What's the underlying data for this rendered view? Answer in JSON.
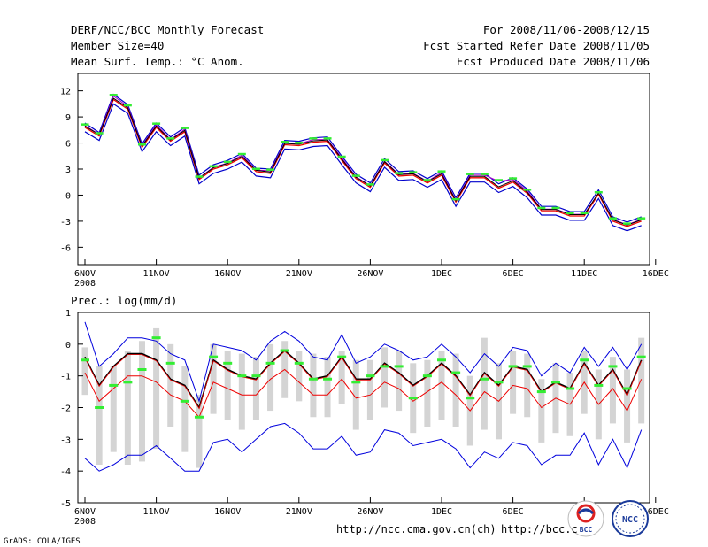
{
  "header": {
    "title": "DERF/NCC/BCC Monthly Forecast",
    "member_size": "Member Size=40",
    "variable": "Mean Surf. Temp.: °C Anom.",
    "period": "For 2008/11/06-2008/12/15",
    "started": "Fcst Started Refer Date 2008/11/05",
    "produced": "Fcst Produced Date 2008/11/06"
  },
  "footer": {
    "url1": "http://ncc.cma.gov.cn(ch)",
    "url2": "http://bcc.c",
    "credit": "GrADS: COLA/IGES"
  },
  "logos": {
    "bcc": "BCC",
    "ncc": "NCC"
  },
  "x_ticks": [
    "6NOV",
    "11NOV",
    "16NOV",
    "21NOV",
    "26NOV",
    "1DEC",
    "6DEC",
    "11DEC",
    "16DEC"
  ],
  "x_year": "2008",
  "colors": {
    "ensemble_mean": "#000000",
    "upper_envelope": "#0000dd",
    "lower_envelope": "#0000dd",
    "median": "#ee0000",
    "member_marker": "#33ee33",
    "spread_bar": "#d4d4d4",
    "temp_outer": "#0000cc",
    "temp_mean": "#000000",
    "temp_red": "#ee0000",
    "temp_purple": "#aa00cc"
  },
  "chart_data": [
    {
      "type": "line",
      "title": "Mean Surf. Temp.: °C Anom.",
      "xlabel": "",
      "ylabel": "°C Anom.",
      "ylim": [
        -8,
        14
      ],
      "yticks": [
        -6,
        -3,
        0,
        3,
        6,
        9,
        12
      ],
      "days": [
        0,
        1,
        2,
        3,
        4,
        5,
        6,
        7,
        8,
        9,
        10,
        11,
        12,
        13,
        14,
        15,
        16,
        17,
        18,
        19,
        20,
        21,
        22,
        23,
        24,
        25,
        26,
        27,
        28,
        29,
        30,
        31,
        32,
        33,
        34,
        35,
        36,
        37,
        38,
        39
      ],
      "series": [
        {
          "name": "ensemble mean",
          "values": [
            7.8,
            6.8,
            11.0,
            9.9,
            5.5,
            7.8,
            6.2,
            7.3,
            1.8,
            3.0,
            3.5,
            4.3,
            2.7,
            2.5,
            5.8,
            5.7,
            6.1,
            6.2,
            4.0,
            1.9,
            0.9,
            3.7,
            2.2,
            2.3,
            1.4,
            2.3,
            -0.8,
            2.0,
            2.0,
            0.8,
            1.5,
            0.2,
            -1.8,
            -1.8,
            -2.4,
            -2.4,
            0.1,
            -3.0,
            -3.6,
            -3.0
          ]
        },
        {
          "name": "upper",
          "values": [
            8.3,
            7.2,
            11.6,
            10.4,
            5.9,
            8.3,
            6.7,
            7.8,
            2.3,
            3.5,
            4.0,
            4.8,
            3.1,
            3.0,
            6.3,
            6.2,
            6.6,
            6.7,
            4.5,
            2.4,
            1.4,
            4.2,
            2.7,
            2.8,
            1.9,
            2.8,
            -0.3,
            2.5,
            2.5,
            1.3,
            2.0,
            0.7,
            -1.3,
            -1.3,
            -1.9,
            -1.9,
            0.6,
            -2.5,
            -3.1,
            -2.5
          ]
        },
        {
          "name": "lower",
          "values": [
            7.3,
            6.3,
            10.5,
            9.4,
            5.0,
            7.3,
            5.7,
            6.8,
            1.3,
            2.5,
            3.0,
            3.8,
            2.2,
            2.0,
            5.3,
            5.2,
            5.6,
            5.7,
            3.5,
            1.4,
            0.4,
            3.2,
            1.7,
            1.8,
            0.9,
            1.8,
            -1.3,
            1.5,
            1.5,
            0.3,
            1.0,
            -0.3,
            -2.3,
            -2.3,
            -2.9,
            -2.9,
            -0.4,
            -3.5,
            -4.1,
            -3.5
          ]
        },
        {
          "name": "member",
          "values": [
            8.0,
            7.0,
            11.4,
            10.2,
            5.7,
            8.1,
            6.4,
            7.6,
            2.0,
            3.2,
            3.7,
            4.6,
            2.9,
            2.8,
            6.0,
            5.9,
            6.4,
            6.4,
            4.3,
            2.1,
            1.1,
            3.9,
            2.4,
            2.5,
            1.6,
            2.6,
            -0.6,
            2.3,
            2.3,
            1.6,
            1.8,
            0.5,
            -1.6,
            -1.6,
            -2.2,
            -2.2,
            0.2,
            -2.8,
            -3.4,
            -2.8
          ]
        }
      ]
    },
    {
      "type": "line",
      "title": "Prec.: log(mm/d)",
      "xlabel": "",
      "ylabel": "log(mm/d)",
      "ylim": [
        -5,
        1
      ],
      "yticks": [
        -5,
        -4,
        -3,
        -2,
        -1,
        0,
        1
      ],
      "days": [
        0,
        1,
        2,
        3,
        4,
        5,
        6,
        7,
        8,
        9,
        10,
        11,
        12,
        13,
        14,
        15,
        16,
        17,
        18,
        19,
        20,
        21,
        22,
        23,
        24,
        25,
        26,
        27,
        28,
        29,
        30,
        31,
        32,
        33,
        34,
        35,
        36,
        37,
        38,
        39
      ],
      "series": [
        {
          "name": "ensemble mean",
          "values": [
            -0.4,
            -1.3,
            -0.7,
            -0.3,
            -0.3,
            -0.5,
            -1.1,
            -1.3,
            -2.0,
            -0.5,
            -0.8,
            -1.0,
            -1.1,
            -0.6,
            -0.2,
            -0.6,
            -1.1,
            -1.0,
            -0.4,
            -1.1,
            -1.1,
            -0.6,
            -0.9,
            -1.3,
            -1.0,
            -0.6,
            -1.0,
            -1.6,
            -0.9,
            -1.3,
            -0.7,
            -0.8,
            -1.5,
            -1.2,
            -1.4,
            -0.6,
            -1.3,
            -0.8,
            -1.6,
            -0.5
          ]
        },
        {
          "name": "upper envelope",
          "values": [
            0.7,
            -0.7,
            -0.3,
            0.2,
            0.2,
            0.1,
            -0.3,
            -0.5,
            -1.8,
            0.0,
            -0.1,
            -0.2,
            -0.5,
            0.1,
            0.4,
            0.1,
            -0.4,
            -0.5,
            0.3,
            -0.6,
            -0.4,
            0.0,
            -0.2,
            -0.5,
            -0.4,
            0.0,
            -0.4,
            -0.9,
            -0.3,
            -0.7,
            -0.1,
            -0.2,
            -1.0,
            -0.6,
            -0.9,
            -0.1,
            -0.7,
            -0.1,
            -0.8,
            0.0
          ]
        },
        {
          "name": "lower envelope",
          "values": [
            -3.6,
            -4.0,
            -3.8,
            -3.5,
            -3.5,
            -3.2,
            -3.6,
            -4.0,
            -4.0,
            -3.1,
            -3.0,
            -3.4,
            -3.0,
            -2.6,
            -2.5,
            -2.8,
            -3.3,
            -3.3,
            -2.9,
            -3.5,
            -3.4,
            -2.7,
            -2.8,
            -3.2,
            -3.1,
            -3.0,
            -3.3,
            -3.9,
            -3.4,
            -3.6,
            -3.1,
            -3.2,
            -3.8,
            -3.5,
            -3.5,
            -2.8,
            -3.8,
            -3.0,
            -3.9,
            -2.7
          ]
        },
        {
          "name": "median",
          "values": [
            -0.9,
            -1.8,
            -1.4,
            -1.0,
            -1.0,
            -1.2,
            -1.6,
            -1.8,
            -2.3,
            -1.2,
            -1.4,
            -1.6,
            -1.6,
            -1.1,
            -0.8,
            -1.2,
            -1.6,
            -1.6,
            -1.1,
            -1.7,
            -1.6,
            -1.2,
            -1.4,
            -1.8,
            -1.5,
            -1.2,
            -1.6,
            -2.1,
            -1.5,
            -1.8,
            -1.3,
            -1.4,
            -2.0,
            -1.7,
            -1.9,
            -1.2,
            -1.9,
            -1.4,
            -2.1,
            -1.1
          ]
        },
        {
          "name": "member",
          "values": [
            -0.5,
            -2.0,
            -1.3,
            -1.2,
            -0.8,
            0.2,
            -0.6,
            -1.8,
            -2.3,
            -0.4,
            -0.6,
            -1.0,
            -1.0,
            -0.6,
            -0.2,
            -0.6,
            -1.1,
            -1.1,
            -0.4,
            -1.2,
            -1.0,
            -0.7,
            -0.7,
            -1.7,
            -1.0,
            -0.5,
            -0.9,
            -1.7,
            -1.1,
            -1.2,
            -0.7,
            -0.7,
            -1.5,
            -1.2,
            -1.4,
            -0.5,
            -1.3,
            -0.7,
            -1.4,
            -0.4
          ]
        }
      ],
      "spread": {
        "low": [
          -1.6,
          -3.8,
          -3.4,
          -3.8,
          -3.7,
          -3.3,
          -2.6,
          -3.4,
          -3.9,
          -2.2,
          -2.4,
          -2.7,
          -2.4,
          -2.1,
          -1.7,
          -1.8,
          -2.3,
          -2.3,
          -1.9,
          -2.7,
          -2.4,
          -2.0,
          -2.1,
          -2.8,
          -2.6,
          -2.4,
          -2.6,
          -3.2,
          -2.7,
          -3.0,
          -2.2,
          -2.3,
          -3.1,
          -2.8,
          -2.9,
          -2.2,
          -3.0,
          -2.5,
          -3.1,
          -2.5
        ],
        "high": [
          -0.1,
          -0.7,
          -0.7,
          -0.2,
          0.1,
          0.5,
          0.0,
          -0.7,
          -1.6,
          0.0,
          -0.2,
          -0.3,
          -0.4,
          0.0,
          0.1,
          -0.2,
          -0.3,
          -0.4,
          -0.2,
          -0.5,
          -0.5,
          -0.1,
          -0.2,
          -0.6,
          -0.5,
          -0.2,
          -0.3,
          -1.0,
          0.2,
          -0.6,
          -0.2,
          -0.3,
          -1.1,
          -0.6,
          -0.9,
          -0.2,
          -0.8,
          -0.4,
          -0.8,
          0.2
        ]
      }
    }
  ]
}
